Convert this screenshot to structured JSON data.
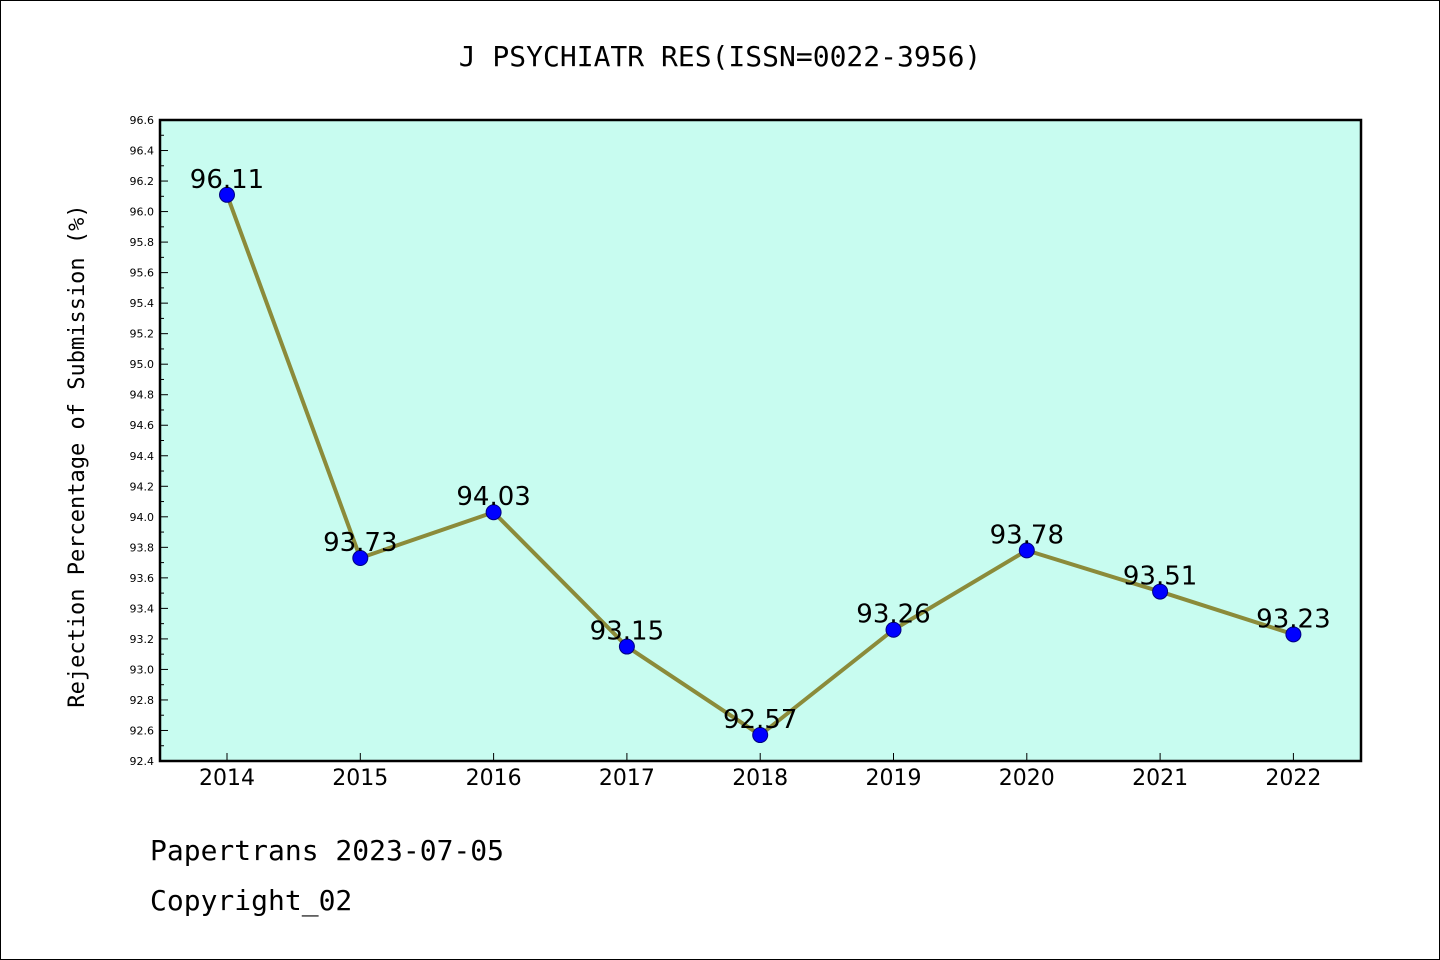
{
  "chart_data": {
    "type": "line",
    "title": "J PSYCHIATR RES(ISSN=0022-3956)",
    "ylabel": "Rejection Percentage of Submission (%)",
    "xlabel": "",
    "categories": [
      "2014",
      "2015",
      "2016",
      "2017",
      "2018",
      "2019",
      "2020",
      "2021",
      "2022"
    ],
    "values": [
      96.11,
      93.73,
      94.03,
      93.15,
      92.57,
      93.26,
      93.78,
      93.51,
      93.23
    ],
    "data_labels": [
      "96.11",
      "93.73",
      "94.03",
      "93.15",
      "92.57",
      "93.26",
      "93.78",
      "93.51",
      "93.23"
    ],
    "ylim": [
      92.4,
      96.6
    ],
    "ytick_step": 0.2,
    "yticks": [
      "92.4",
      "92.6",
      "92.8",
      "93.0",
      "93.2",
      "93.4",
      "93.6",
      "93.8",
      "94.0",
      "94.2",
      "94.4",
      "94.6",
      "94.8",
      "95.0",
      "95.2",
      "95.4",
      "95.6",
      "95.8",
      "96.0",
      "96.2",
      "96.4",
      "96.6"
    ],
    "grid": false,
    "colors": {
      "plot_background": "#c8fcf0",
      "line": "#8b8b3a",
      "marker": "#0000ff"
    }
  },
  "footer": {
    "source": "Papertrans 2023-07-05",
    "copyright": "Copyright_02"
  }
}
